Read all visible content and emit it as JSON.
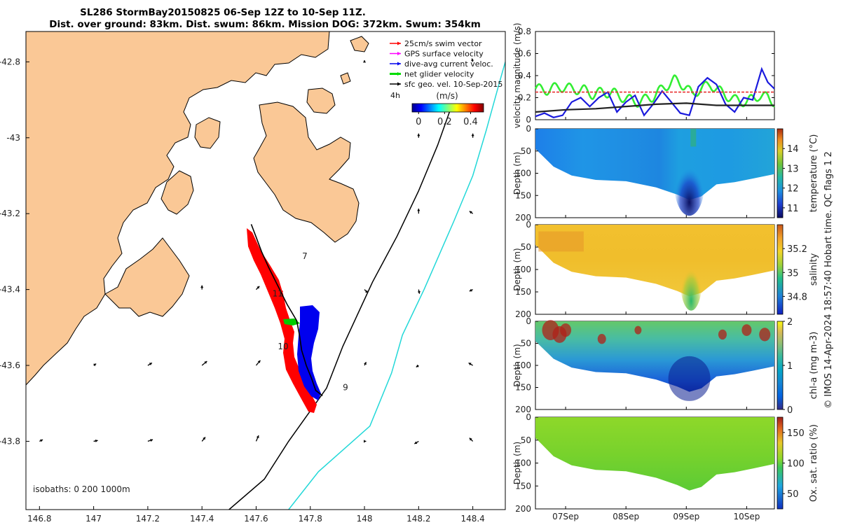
{
  "title": {
    "line1": "SL286 StormBay20150825 06-Sep 12Z to 10-Sep 11Z.",
    "line2": "Dist. over ground: 83km. Dist. swum: 86km. Mission DOG: 372km. Swum: 354km"
  },
  "colors": {
    "land": "#FAC896",
    "track_red": "#FF0000",
    "track_blue": "#0000EE",
    "track_green": "#00CC00",
    "cyan_isobath": "#22D8D8",
    "velocity_green": "#33EE33",
    "velocity_blue": "#1A1ADD",
    "velocity_red": "#E83030"
  },
  "watermark": "© IMOS 14-Apr-2024 18:57:40 Hobart time. QC flags 1  2",
  "chart_data": [
    {
      "id": "map",
      "type": "scatter",
      "xlim": [
        146.75,
        148.52
      ],
      "ylim": [
        -43.98,
        -42.72
      ],
      "x_ticks": [
        "146.8",
        "147",
        "147.2",
        "147.4",
        "147.6",
        "147.8",
        "148",
        "148.2",
        "148.4"
      ],
      "x_tick_values": [
        146.8,
        147,
        147.2,
        147.4,
        147.6,
        147.8,
        148,
        148.2,
        148.4
      ],
      "y_ticks": [
        "-42.8",
        "-43",
        "-43.2",
        "-43.4",
        "-43.6",
        "-43.8"
      ],
      "y_tick_values": [
        -42.8,
        -43,
        -43.2,
        -43.4,
        -43.6,
        -43.8
      ],
      "legend": [
        {
          "label": "25cm/s swim vector",
          "color": "#FF0000"
        },
        {
          "label": "GPS surface velocity",
          "color": "#FF00FF"
        },
        {
          "label": "dive-avg current veloc.",
          "color": "#0000EE"
        },
        {
          "label": "net glider velocity",
          "color": "#00DD00"
        },
        {
          "label": "sfc geo. vel. 10-Sep-2015",
          "color": "#000000"
        }
      ],
      "legend_hours": "4h",
      "colorbar": {
        "label": "(m/s)",
        "ticks": [
          "0",
          "0.2",
          "0.4"
        ],
        "tick_values": [
          0,
          0.2,
          0.4
        ],
        "range": [
          -0.05,
          0.5
        ]
      },
      "isobath_note": "isobaths: 0   200  1000m",
      "day_labels": [
        {
          "text": "7",
          "lon": 147.77,
          "lat": -43.32
        },
        {
          "text": "11",
          "lon": 147.66,
          "lat": -43.418
        },
        {
          "text": "10",
          "lon": 147.68,
          "lat": -43.558
        },
        {
          "text": "9",
          "lon": 147.92,
          "lat": -43.665
        }
      ],
      "glider_track": [
        {
          "lon": 147.582,
          "lat": -43.228
        },
        {
          "lon": 147.6,
          "lat": -43.262
        },
        {
          "lon": 147.62,
          "lat": -43.3
        },
        {
          "lon": 147.645,
          "lat": -43.34
        },
        {
          "lon": 147.68,
          "lat": -43.39
        },
        {
          "lon": 147.715,
          "lat": -43.44
        },
        {
          "lon": 147.75,
          "lat": -43.482
        },
        {
          "lon": 147.76,
          "lat": -43.52
        },
        {
          "lon": 147.768,
          "lat": -43.56
        },
        {
          "lon": 147.785,
          "lat": -43.6
        },
        {
          "lon": 147.805,
          "lat": -43.635
        },
        {
          "lon": 147.82,
          "lat": -43.666
        },
        {
          "lon": 147.845,
          "lat": -43.68
        }
      ],
      "isobath_200m": [
        {
          "lon": 147.5,
          "lat": -43.98
        },
        {
          "lon": 147.63,
          "lat": -43.9
        },
        {
          "lon": 147.72,
          "lat": -43.8
        },
        {
          "lon": 147.86,
          "lat": -43.66
        },
        {
          "lon": 147.92,
          "lat": -43.55
        },
        {
          "lon": 148.03,
          "lat": -43.38
        },
        {
          "lon": 148.12,
          "lat": -43.26
        },
        {
          "lon": 148.2,
          "lat": -43.14
        },
        {
          "lon": 148.27,
          "lat": -43.02
        },
        {
          "lon": 148.32,
          "lat": -42.92
        }
      ],
      "isobath_1000m": [
        {
          "lon": 147.72,
          "lat": -43.98
        },
        {
          "lon": 147.83,
          "lat": -43.88
        },
        {
          "lon": 148.02,
          "lat": -43.76
        },
        {
          "lon": 148.1,
          "lat": -43.62
        },
        {
          "lon": 148.14,
          "lat": -43.52
        },
        {
          "lon": 148.22,
          "lat": -43.4
        },
        {
          "lon": 148.33,
          "lat": -43.22
        },
        {
          "lon": 148.4,
          "lat": -43.1
        },
        {
          "lon": 148.45,
          "lat": -42.98
        },
        {
          "lon": 148.5,
          "lat": -42.85
        },
        {
          "lon": 148.52,
          "lat": -42.8
        }
      ],
      "surface_vectors": [
        {
          "lon": 147.0,
          "lat": -43.6,
          "u": 0.03,
          "v": 0.02
        },
        {
          "lon": 147.2,
          "lat": -43.6,
          "u": 0.05,
          "v": 0.03
        },
        {
          "lon": 147.4,
          "lat": -43.6,
          "u": 0.06,
          "v": 0.05
        },
        {
          "lon": 147.6,
          "lat": -43.6,
          "u": 0.05,
          "v": 0.06
        },
        {
          "lon": 148.0,
          "lat": -43.6,
          "u": 0.02,
          "v": 0.04
        },
        {
          "lon": 148.2,
          "lat": -43.6,
          "u": -0.03,
          "v": -0.02
        },
        {
          "lon": 148.4,
          "lat": -43.6,
          "u": -0.05,
          "v": 0.03
        },
        {
          "lon": 146.8,
          "lat": -43.8,
          "u": 0.04,
          "v": 0.02
        },
        {
          "lon": 147.0,
          "lat": -43.8,
          "u": 0.05,
          "v": 0.01
        },
        {
          "lon": 147.2,
          "lat": -43.8,
          "u": 0.06,
          "v": 0.02
        },
        {
          "lon": 147.4,
          "lat": -43.8,
          "u": 0.04,
          "v": 0.05
        },
        {
          "lon": 147.6,
          "lat": -43.8,
          "u": 0.03,
          "v": 0.07
        },
        {
          "lon": 148.0,
          "lat": -43.8,
          "u": 0.02,
          "v": 0.0
        },
        {
          "lon": 148.2,
          "lat": -43.8,
          "u": -0.05,
          "v": -0.03
        },
        {
          "lon": 148.4,
          "lat": -43.8,
          "u": -0.04,
          "v": 0.04
        },
        {
          "lon": 147.4,
          "lat": -43.4,
          "u": 0.0,
          "v": 0.05
        },
        {
          "lon": 147.6,
          "lat": -43.4,
          "u": 0.04,
          "v": 0.04
        },
        {
          "lon": 148.0,
          "lat": -43.4,
          "u": 0.04,
          "v": -0.04
        },
        {
          "lon": 148.2,
          "lat": -43.4,
          "u": 0.01,
          "v": -0.05
        },
        {
          "lon": 148.4,
          "lat": -43.4,
          "u": -0.04,
          "v": -0.02
        },
        {
          "lon": 148.2,
          "lat": -43.2,
          "u": 0.0,
          "v": 0.06
        },
        {
          "lon": 148.4,
          "lat": -43.2,
          "u": -0.04,
          "v": 0.03
        },
        {
          "lon": 148.2,
          "lat": -43.0,
          "u": 0.0,
          "v": 0.05
        },
        {
          "lon": 148.4,
          "lat": -43.0,
          "u": 0.0,
          "v": 0.05
        },
        {
          "lon": 148.4,
          "lat": -42.8,
          "u": -0.01,
          "v": 0.04
        },
        {
          "lon": 148.0,
          "lat": -42.8,
          "u": 0.0,
          "v": 0.02
        }
      ]
    },
    {
      "id": "velocity",
      "type": "line",
      "ylabel": "velocity magnitude (m/s)",
      "ylim": [
        0,
        0.8
      ],
      "y_ticks": [
        "0",
        "0.2",
        "0.4",
        "0.6",
        "0.8"
      ],
      "y_tick_values": [
        0,
        0.2,
        0.4,
        0.6,
        0.8
      ],
      "x_day_range": [
        6.5,
        10.46
      ],
      "series": [
        {
          "name": "net glider velocity",
          "color": "#33EE33",
          "style": "osc",
          "x": [
            6.5,
            6.7,
            6.9,
            7.1,
            7.3,
            7.45,
            7.6,
            7.8,
            8.0,
            8.2,
            8.45,
            8.6,
            8.8,
            9.0,
            9.1,
            9.2,
            9.4,
            9.6,
            9.8,
            10.0,
            10.2,
            10.35,
            10.46
          ],
          "y": [
            0.28,
            0.27,
            0.3,
            0.28,
            0.27,
            0.23,
            0.25,
            0.24,
            0.19,
            0.16,
            0.21,
            0.28,
            0.36,
            0.3,
            0.22,
            0.27,
            0.32,
            0.24,
            0.18,
            0.16,
            0.22,
            0.2,
            0.16
          ]
        },
        {
          "name": "dive-avg current veloc.",
          "color": "#1A1ADD",
          "style": "line",
          "x": [
            6.5,
            6.65,
            6.8,
            6.95,
            7.1,
            7.25,
            7.4,
            7.55,
            7.7,
            7.85,
            8.0,
            8.15,
            8.3,
            8.45,
            8.6,
            8.75,
            8.9,
            9.05,
            9.2,
            9.35,
            9.5,
            9.65,
            9.8,
            9.95,
            10.1,
            10.25,
            10.35,
            10.46
          ],
          "y": [
            0.03,
            0.06,
            0.02,
            0.04,
            0.16,
            0.2,
            0.12,
            0.2,
            0.25,
            0.07,
            0.16,
            0.22,
            0.04,
            0.14,
            0.26,
            0.16,
            0.06,
            0.04,
            0.3,
            0.38,
            0.32,
            0.14,
            0.07,
            0.2,
            0.18,
            0.46,
            0.34,
            0.28
          ]
        },
        {
          "name": "swim vector",
          "color": "#E83030",
          "style": "dash",
          "x": [
            6.5,
            10.46
          ],
          "y": [
            0.25,
            0.25
          ]
        },
        {
          "name": "sfc geo. vel.",
          "color": "#222222",
          "style": "line",
          "x": [
            6.5,
            7.0,
            7.5,
            8.0,
            8.5,
            9.0,
            9.5,
            10.0,
            10.46
          ],
          "y": [
            0.07,
            0.09,
            0.1,
            0.12,
            0.14,
            0.15,
            0.13,
            0.13,
            0.13
          ]
        }
      ]
    },
    {
      "id": "temperature",
      "type": "heatmap",
      "ylabel": "Depth (m)",
      "ylim": [
        200,
        0
      ],
      "y_ticks": [
        "0",
        "50",
        "100",
        "150",
        "200"
      ],
      "y_tick_values": [
        0,
        50,
        100,
        150,
        200
      ],
      "colorbar": {
        "label": "temperature (°C)",
        "range": [
          10.5,
          15
        ],
        "ticks": [
          "11",
          "12",
          "13",
          "14"
        ],
        "tick_values": [
          11,
          12,
          13,
          14
        ]
      }
    },
    {
      "id": "salinity",
      "type": "heatmap",
      "ylabel": "Depth (m)",
      "ylim": [
        200,
        0
      ],
      "y_ticks": [
        "0",
        "50",
        "100",
        "150",
        "200"
      ],
      "y_tick_values": [
        0,
        50,
        100,
        150,
        200
      ],
      "colorbar": {
        "label": "salinity",
        "range": [
          34.65,
          35.4
        ],
        "ticks": [
          "34.8",
          "35",
          "35.2"
        ],
        "tick_values": [
          34.8,
          35,
          35.2
        ]
      }
    },
    {
      "id": "chla",
      "type": "heatmap",
      "ylabel": "Depth (m)",
      "ylim": [
        200,
        0
      ],
      "y_ticks": [
        "0",
        "50",
        "100",
        "150",
        "200"
      ],
      "y_tick_values": [
        0,
        50,
        100,
        150,
        200
      ],
      "colorbar": {
        "label": "chl-a (mg m-3)",
        "range": [
          0,
          2
        ],
        "ticks": [
          "0",
          "1",
          "2"
        ],
        "tick_values": [
          0,
          1,
          2
        ]
      }
    },
    {
      "id": "oxygen",
      "type": "heatmap",
      "ylabel": "Depth (m)",
      "ylim": [
        200,
        0
      ],
      "y_ticks": [
        "0",
        "50",
        "100",
        "150",
        "200"
      ],
      "y_tick_values": [
        0,
        50,
        100,
        150,
        200
      ],
      "colorbar": {
        "label": "Ox. sat. ratio (%)",
        "range": [
          25,
          175
        ],
        "ticks": [
          "50",
          "100",
          "150"
        ],
        "tick_values": [
          50,
          100,
          150
        ]
      }
    },
    {
      "id": "time_axis",
      "type": "table",
      "ticks": [
        "07Sep",
        "08Sep",
        "09Sep",
        "10Sep"
      ],
      "tick_values": [
        7,
        8,
        9,
        10
      ],
      "bottom_depth": [
        {
          "day": 6.5,
          "depth": 45
        },
        {
          "day": 6.8,
          "depth": 85
        },
        {
          "day": 7.1,
          "depth": 105
        },
        {
          "day": 7.5,
          "depth": 115
        },
        {
          "day": 8.0,
          "depth": 118
        },
        {
          "day": 8.5,
          "depth": 132
        },
        {
          "day": 8.85,
          "depth": 148
        },
        {
          "day": 9.05,
          "depth": 160
        },
        {
          "day": 9.25,
          "depth": 152
        },
        {
          "day": 9.5,
          "depth": 125
        },
        {
          "day": 9.8,
          "depth": 120
        },
        {
          "day": 10.1,
          "depth": 112
        },
        {
          "day": 10.46,
          "depth": 102
        }
      ]
    }
  ]
}
